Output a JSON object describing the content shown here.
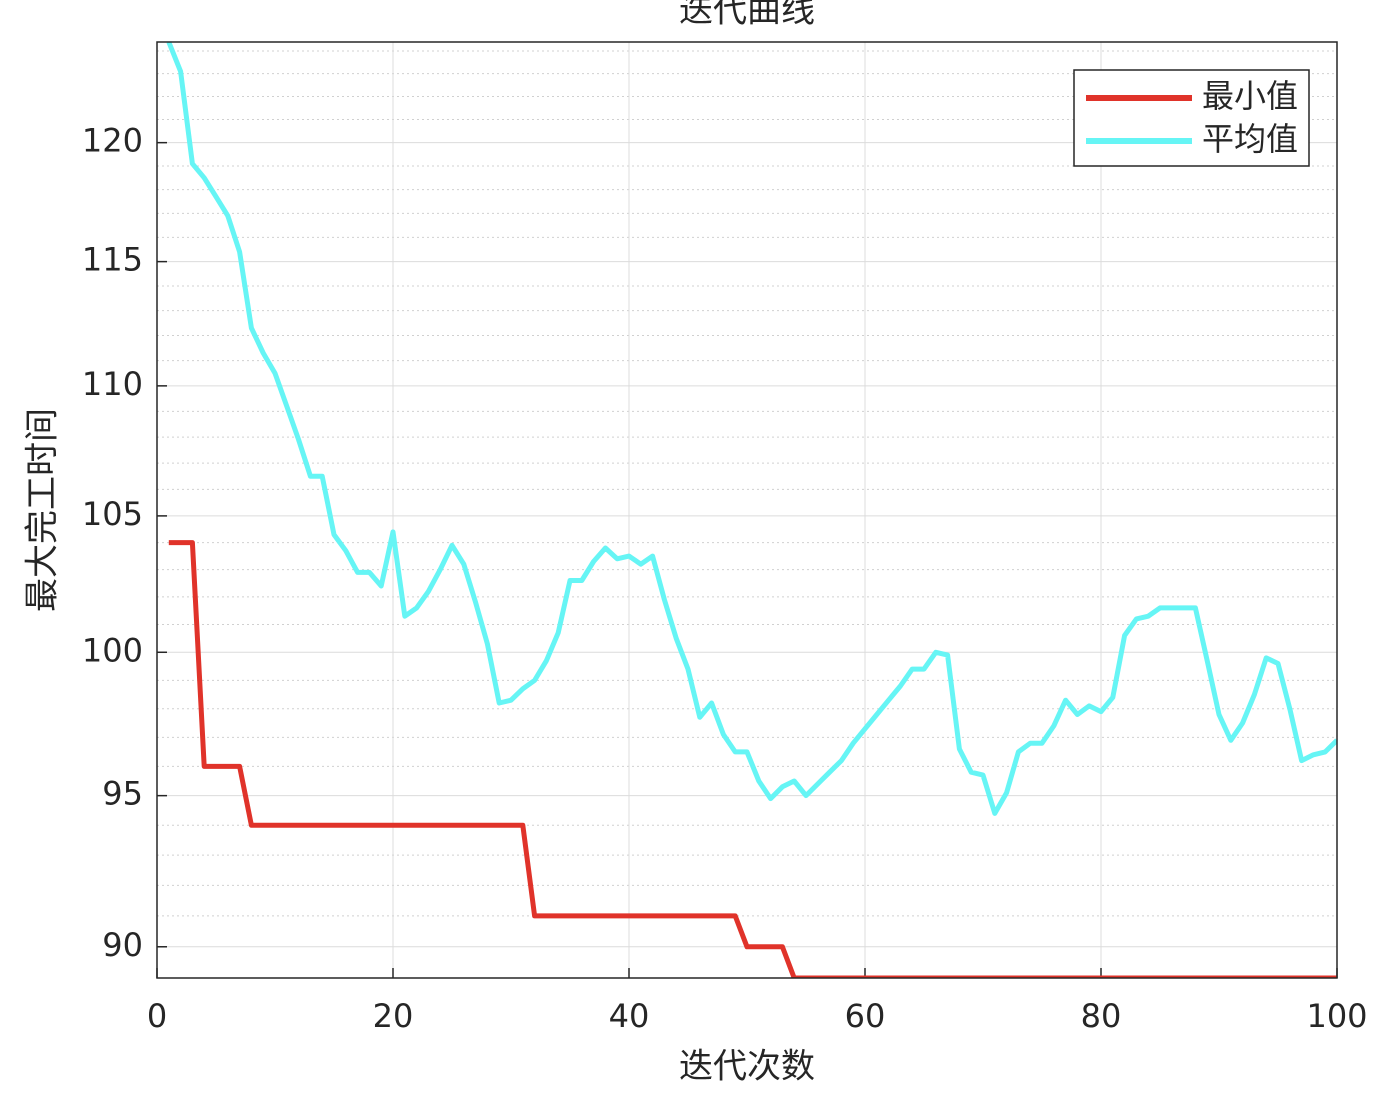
{
  "chart_data": {
    "type": "line",
    "title": "迭代曲线",
    "x_label": "迭代次数",
    "y_label": "最大完工时间",
    "x": [
      1,
      2,
      3,
      4,
      5,
      6,
      7,
      8,
      9,
      10,
      11,
      12,
      13,
      14,
      15,
      16,
      17,
      18,
      19,
      20,
      21,
      22,
      23,
      24,
      25,
      26,
      27,
      28,
      29,
      30,
      31,
      32,
      33,
      34,
      35,
      36,
      37,
      38,
      39,
      40,
      41,
      42,
      43,
      44,
      45,
      46,
      47,
      48,
      49,
      50,
      51,
      52,
      53,
      54,
      55,
      56,
      57,
      58,
      59,
      60,
      61,
      62,
      63,
      64,
      65,
      66,
      67,
      68,
      69,
      70,
      71,
      72,
      73,
      74,
      75,
      76,
      77,
      78,
      79,
      80,
      81,
      82,
      83,
      84,
      85,
      86,
      87,
      88,
      89,
      90,
      91,
      92,
      93,
      94,
      95,
      96,
      97,
      98,
      99,
      100
    ],
    "series": [
      {
        "name": "最小值",
        "color": "#e0332a",
        "values": [
          104,
          104,
          104,
          96,
          96,
          96,
          96,
          94,
          94,
          94,
          94,
          94,
          94,
          94,
          94,
          94,
          94,
          94,
          94,
          94,
          94,
          94,
          94,
          94,
          94,
          94,
          94,
          94,
          94,
          94,
          94,
          91,
          91,
          91,
          91,
          91,
          91,
          91,
          91,
          91,
          91,
          91,
          91,
          91,
          91,
          91,
          91,
          91,
          91,
          90,
          90,
          90,
          90,
          89,
          89,
          89,
          89,
          89,
          89,
          89,
          89,
          89,
          89,
          89,
          89,
          89,
          89,
          89,
          89,
          89,
          89,
          89,
          89,
          89,
          89,
          89,
          89,
          89,
          89,
          89,
          89,
          89,
          89,
          89,
          89,
          89,
          89,
          89,
          89,
          89,
          89,
          89,
          89,
          89,
          89,
          89,
          89,
          89,
          89,
          89
        ]
      },
      {
        "name": "平均值",
        "color": "#66f5f5",
        "values": [
          124.4,
          123.1,
          119.1,
          118.5,
          117.7,
          116.9,
          115.4,
          112.3,
          111.3,
          110.5,
          109.2,
          107.9,
          106.5,
          106.5,
          104.3,
          103.7,
          102.9,
          102.9,
          102.4,
          104.4,
          101.3,
          101.6,
          102.2,
          103.0,
          103.9,
          103.2,
          101.8,
          100.3,
          98.2,
          98.3,
          98.7,
          99.0,
          99.7,
          100.7,
          102.6,
          102.6,
          103.3,
          103.8,
          103.4,
          103.5,
          103.2,
          103.5,
          101.9,
          100.5,
          99.4,
          97.7,
          98.2,
          97.1,
          96.5,
          96.5,
          95.5,
          94.9,
          95.3,
          95.5,
          95.0,
          95.4,
          95.8,
          96.2,
          96.8,
          97.3,
          97.8,
          98.3,
          98.8,
          99.4,
          99.4,
          100.0,
          99.9,
          96.6,
          95.8,
          95.7,
          94.4,
          95.1,
          96.5,
          96.8,
          96.8,
          97.4,
          98.3,
          97.8,
          98.1,
          97.9,
          98.4,
          100.6,
          101.2,
          101.3,
          101.6,
          101.6,
          101.6,
          101.6,
          99.7,
          97.8,
          96.9,
          97.5,
          98.5,
          99.8,
          99.6,
          98.0,
          96.2,
          96.4,
          96.5,
          96.9
        ]
      }
    ],
    "xlim": [
      0,
      100
    ],
    "xticks": [
      0,
      20,
      40,
      60,
      80,
      100
    ],
    "ylim": [
      89,
      124.4
    ],
    "yticks": [
      90,
      95,
      100,
      105,
      110,
      115,
      120
    ],
    "yminorticks": [
      89,
      91,
      92,
      93,
      94,
      96,
      97,
      98,
      99,
      101,
      102,
      103,
      104,
      106,
      107,
      108,
      109,
      111,
      112,
      113,
      114,
      116,
      117,
      118,
      119,
      121,
      122,
      123,
      124
    ],
    "y_scale": "log",
    "grid": true,
    "legend_position": "upper right"
  }
}
